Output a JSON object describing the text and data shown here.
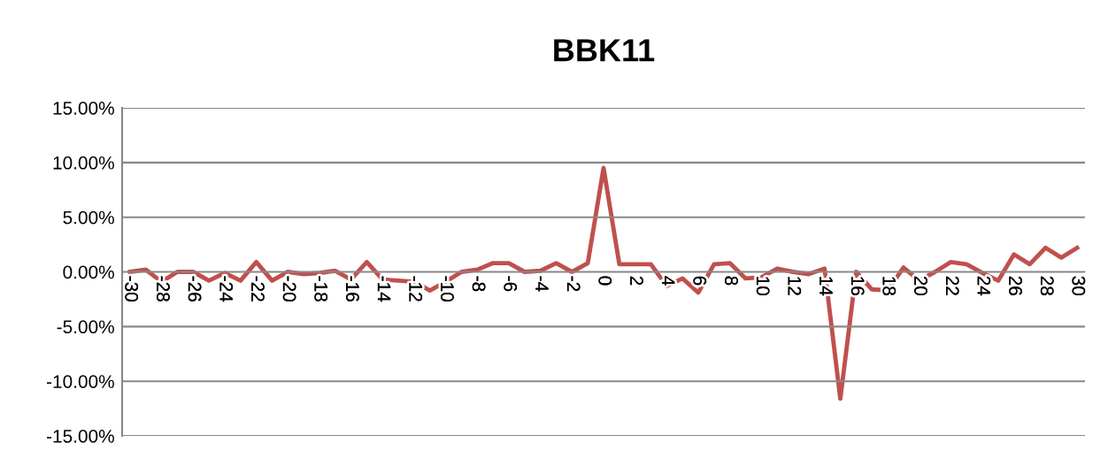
{
  "chart_data": {
    "type": "line",
    "title": "BBK11",
    "categories": [
      "-30",
      null,
      "-28",
      null,
      "-26",
      null,
      "-24",
      null,
      "-22",
      null,
      "-20",
      null,
      "-18",
      null,
      "-16",
      null,
      "-14",
      null,
      "-12",
      null,
      "-10",
      null,
      "-8",
      null,
      "-6",
      null,
      "-4",
      null,
      "-2",
      null,
      "0",
      null,
      "2",
      null,
      "4",
      null,
      "6",
      null,
      "8",
      null,
      "10",
      null,
      "12",
      null,
      "14",
      null,
      "16",
      null,
      "18",
      null,
      "20",
      null,
      "22",
      null,
      "24",
      null,
      "26",
      null,
      "28",
      null,
      "30"
    ],
    "series": [
      {
        "color": "#c0504d",
        "values": [
          0.0,
          0.2,
          -0.9,
          0.0,
          0.0,
          -0.8,
          -0.1,
          -0.8,
          0.9,
          -0.8,
          0.0,
          -0.2,
          -0.1,
          0.1,
          -0.7,
          0.9,
          -0.7,
          -0.8,
          -0.9,
          -1.7,
          -0.9,
          0.0,
          0.2,
          0.8,
          0.8,
          0.0,
          0.1,
          0.8,
          0.0,
          0.8,
          9.5,
          0.7,
          0.7,
          0.7,
          -1.3,
          -0.6,
          -1.9,
          0.7,
          0.8,
          -0.6,
          -0.5,
          0.3,
          0.0,
          -0.2,
          0.3,
          -11.6,
          0.0,
          -1.6,
          -1.7,
          0.4,
          -0.8,
          0.0,
          0.9,
          0.7,
          -0.1,
          -0.8,
          1.6,
          0.7,
          2.2,
          1.3,
          2.2
        ]
      }
    ],
    "ylim": [
      -15,
      15
    ],
    "yticks": [
      {
        "value": -15,
        "label": "-15.00%"
      },
      {
        "value": -10,
        "label": "-10.00%"
      },
      {
        "value": -5,
        "label": "-5.00%"
      },
      {
        "value": 0,
        "label": "0.00%"
      },
      {
        "value": 5,
        "label": "5.00%"
      },
      {
        "value": 10,
        "label": "10.00%"
      },
      {
        "value": 15,
        "label": "15.00%"
      }
    ],
    "grid": "y",
    "legend": false,
    "marker": "none",
    "line_style": "solid"
  }
}
